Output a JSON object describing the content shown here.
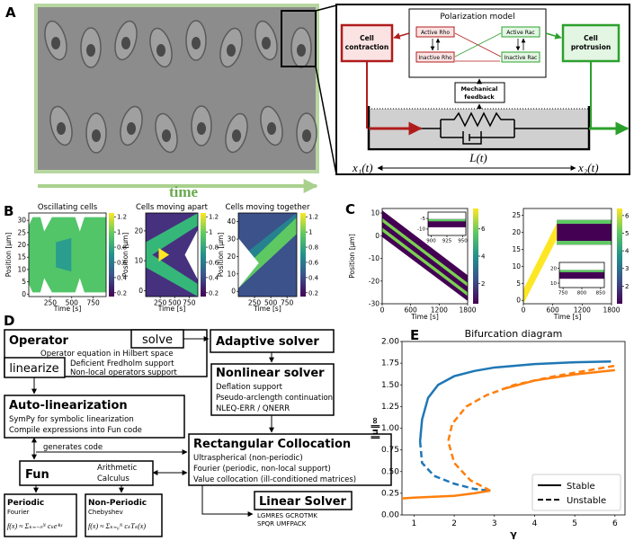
{
  "figure": {
    "panel_labels": [
      "A",
      "B",
      "C",
      "D",
      "E"
    ]
  },
  "panel_a": {
    "time_label": "time",
    "model_title": "Polarization model",
    "active_rho": "Active Rho",
    "inactive_rho": "Inactive Rho",
    "active_rac": "Active Rac",
    "inactive_rac": "Inactive Rac",
    "contraction": [
      "Cell",
      "contraction"
    ],
    "protrusion": [
      "Cell",
      "protrusion"
    ],
    "feedback": [
      "Mechanical",
      "feedback"
    ],
    "x1": "x₁(t)",
    "length": "L(t)",
    "x2": "x₂(t)"
  },
  "panel_d": {
    "operator": {
      "title": "Operator",
      "solve": "solve",
      "linearize": "linearize",
      "lines": [
        "Operator equation in Hilbert space",
        "Deficient Fredholm support",
        "Non-local operators support"
      ]
    },
    "adaptive": {
      "title": "Adaptive solver"
    },
    "nonlinear": {
      "title": "Nonlinear solver",
      "lines": [
        "Deflation support",
        "Pseudo-arclength continuation",
        "NLEQ-ERR / QNERR"
      ]
    },
    "autolin": {
      "title": "Auto-linearization",
      "lines": [
        "SymPy for symbolic linearization",
        "Compile expressions into Fun code"
      ]
    },
    "generates": "generates code",
    "fun": {
      "title": "Fun",
      "lines": [
        "Arithmetic",
        "Calculus"
      ]
    },
    "collocation": {
      "title": "Rectangular Collocation",
      "lines": [
        "Ultraspherical (non-periodic)",
        "Fourier (periodic, non-local support)",
        "Value collocation (ill-conditioned matrices)"
      ]
    },
    "linear": {
      "title": "Linear Solver",
      "lines": [
        "LGMRES GCROTMK",
        "SPQR UMFPACK"
      ]
    },
    "periodic": {
      "title": "Periodic",
      "sub": "Fourier",
      "formula": "f(x) ≈ Σₖ₌₋ₙᴺ cₖeⁱᵏˣ"
    },
    "nonperiodic": {
      "title": "Non-Periodic",
      "sub": "Chebyshev",
      "formula": "f(x) ≈ Σₖ₌₀ᴺ cₖTₖ(x)"
    }
  },
  "chart_data": [
    {
      "type": "heatmap",
      "title": "Oscillating cells",
      "xlabel": "Time [s]",
      "ylabel": "Position [μm]",
      "xlim": [
        0,
        900
      ],
      "xticks": [
        250,
        500,
        750
      ],
      "ylim": [
        -1,
        33
      ],
      "yticks": [
        0,
        5,
        10,
        15,
        20,
        25,
        30
      ],
      "colormap": "viridis",
      "colorbar": {
        "lim": [
          0.15,
          1.25
        ],
        "ticks": [
          0.2,
          0.4,
          0.6,
          0.8,
          1.0,
          1.2
        ]
      }
    },
    {
      "type": "heatmap",
      "title": "Cells moving apart",
      "xlabel": "Time [s]",
      "ylabel": "Position [μm]",
      "xlim": [
        0,
        900
      ],
      "xticks": [
        250,
        500,
        750
      ],
      "ylim": [
        -2,
        26
      ],
      "yticks": [
        0,
        10,
        20
      ],
      "colormap": "viridis",
      "colorbar": {
        "lim": [
          0.15,
          1.25
        ],
        "ticks": [
          0.2,
          0.4,
          0.6,
          0.8,
          1.0,
          1.2
        ]
      }
    },
    {
      "type": "heatmap",
      "title": "Cells moving together",
      "xlabel": "Time [s]",
      "ylabel": "Position [μm]",
      "xlim": [
        0,
        900
      ],
      "xticks": [
        250,
        500,
        750
      ],
      "ylim": [
        -3,
        45
      ],
      "yticks": [
        0,
        10,
        20,
        30,
        40
      ],
      "colormap": "viridis",
      "colorbar": {
        "lim": [
          0.15,
          1.25
        ],
        "ticks": [
          0.2,
          0.4,
          0.6,
          0.8,
          1.0,
          1.2
        ]
      }
    },
    {
      "type": "heatmap",
      "xlabel": "Time [s]",
      "ylabel": "Position [μm]",
      "xlim": [
        0,
        1800
      ],
      "xticks": [
        0,
        600,
        1200,
        1800
      ],
      "ylim": [
        -30,
        12
      ],
      "yticks": [
        -30,
        -20,
        -10,
        0,
        10
      ],
      "colormap": "viridis",
      "colorbar": {
        "lim": [
          0.5,
          7.5
        ],
        "ticks": [
          2,
          4,
          6
        ]
      },
      "inset": {
        "xlim": [
          895,
          955
        ],
        "xticks": [
          900,
          925,
          950
        ],
        "ylim": [
          -13,
          -2
        ],
        "yticks": [
          -5,
          -10
        ]
      }
    },
    {
      "type": "heatmap",
      "xlabel": "Time [s]",
      "xlim": [
        0,
        1800
      ],
      "xticks": [
        0,
        600,
        1200,
        1800
      ],
      "ylim": [
        -1,
        27
      ],
      "yticks": [
        0,
        5,
        10,
        15,
        20,
        25
      ],
      "colormap": "viridis",
      "colorbar": {
        "lim": [
          1,
          6.4
        ],
        "ticks": [
          2,
          3,
          4,
          5,
          6
        ]
      },
      "inset": {
        "xlim": [
          740,
          860
        ],
        "xticks": [
          750,
          800,
          850
        ],
        "ylim": [
          7,
          24
        ],
        "yticks": [
          10,
          20
        ]
      }
    },
    {
      "type": "line",
      "title": "Bifurcation diagram",
      "xlabel": "γ",
      "ylabel": "‖u‖∞",
      "xlim": [
        0.7,
        6.25
      ],
      "ylim": [
        0,
        2
      ],
      "xticks": [
        1,
        2,
        3,
        4,
        5,
        6
      ],
      "yticks": [
        {
          "value": 0,
          "label": "0.00"
        },
        {
          "value": 0.25,
          "label": "0.25"
        },
        {
          "value": 0.5,
          "label": "0.50"
        },
        {
          "value": 0.75,
          "label": "0.75"
        },
        {
          "value": 1,
          "label": "1.00"
        },
        {
          "value": 1.25,
          "label": "1.25"
        },
        {
          "value": 1.5,
          "label": "1.50"
        },
        {
          "value": 1.75,
          "label": "1.75"
        },
        {
          "value": 2,
          "label": "2.00"
        }
      ],
      "series": [
        {
          "color": "#1f77b4",
          "dashed": false,
          "x": [
            1.15,
            1.2,
            1.35,
            1.6,
            2,
            2.5,
            3,
            4,
            5,
            5.9
          ],
          "values": [
            0.85,
            1.1,
            1.35,
            1.5,
            1.6,
            1.66,
            1.7,
            1.74,
            1.76,
            1.77
          ]
        },
        {
          "color": "#1f77b4",
          "dashed": true,
          "x": [
            1.15,
            1.2,
            1.5,
            2,
            2.5,
            2.85
          ],
          "values": [
            0.85,
            0.6,
            0.45,
            0.36,
            0.3,
            0.28
          ]
        },
        {
          "color": "#ff7f0e",
          "dashed": false,
          "x": [
            0.7,
            1,
            1.5,
            2,
            2.5,
            2.9
          ],
          "values": [
            0.19,
            0.2,
            0.21,
            0.22,
            0.25,
            0.28
          ]
        },
        {
          "color": "#ff7f0e",
          "dashed": true,
          "x": [
            2.9,
            2.4,
            2,
            1.85,
            1.95,
            2.3,
            2.8,
            3.5,
            4.5,
            5.5,
            6
          ],
          "values": [
            0.28,
            0.4,
            0.6,
            0.85,
            1.05,
            1.25,
            1.38,
            1.5,
            1.6,
            1.68,
            1.72
          ]
        },
        {
          "color": "#ff7f0e",
          "dashed": false,
          "x": [
            3.2,
            4,
            5,
            6
          ],
          "values": [
            1.45,
            1.55,
            1.62,
            1.67
          ]
        }
      ],
      "legend": {
        "position": "lower right",
        "entries": [
          {
            "label": "Stable",
            "dashed": false
          },
          {
            "label": "Unstable",
            "dashed": true
          }
        ]
      }
    }
  ]
}
